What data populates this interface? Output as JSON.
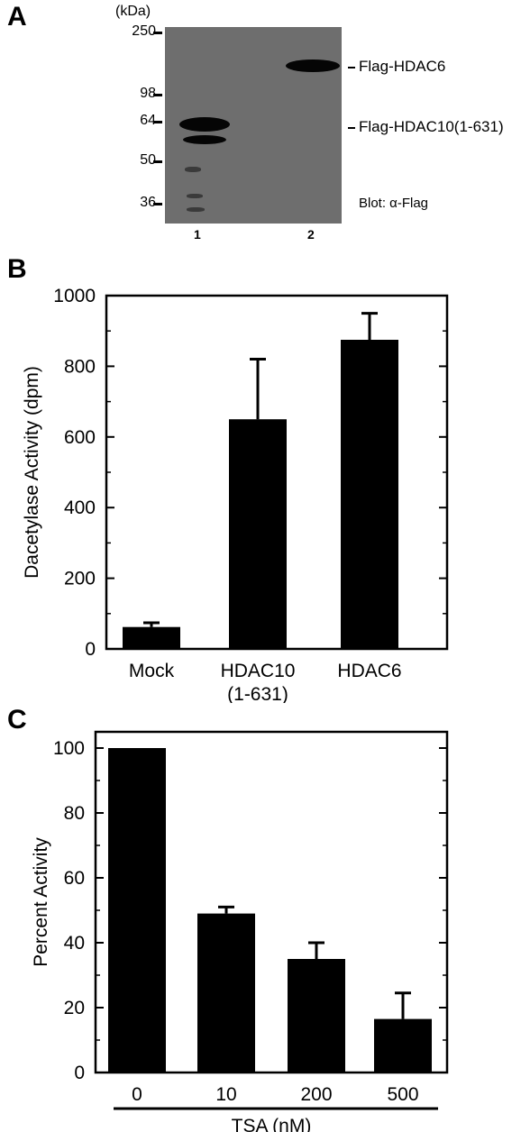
{
  "panels": {
    "a": {
      "letter": "A",
      "unit_label": "(kDa)",
      "markers": [
        "250",
        "98",
        "64",
        "50",
        "36"
      ],
      "lanes": [
        "1",
        "2"
      ],
      "band_labels": [
        "Flag-HDAC6",
        "Flag-HDAC10(1-631)"
      ],
      "blot_label": "Blot: α-Flag"
    },
    "b": {
      "letter": "B"
    },
    "c": {
      "letter": "C"
    }
  },
  "chart_data": [
    {
      "type": "bar",
      "ylabel": "Dacetylase Activity (dpm)",
      "xlabel": "",
      "categories": [
        "Mock",
        "HDAC10\n(1-631)",
        "HDAC6"
      ],
      "values": [
        62,
        650,
        875
      ],
      "errors": [
        12,
        170,
        75
      ],
      "ylim": [
        0,
        1000
      ],
      "yticks": [
        0,
        200,
        400,
        600,
        800,
        1000
      ],
      "color": "#000000"
    },
    {
      "type": "bar",
      "ylabel": "Percent Activity",
      "xlabel": "TSA (nM)",
      "categories": [
        "0",
        "10",
        "200",
        "500"
      ],
      "values": [
        100,
        49,
        35,
        16.5
      ],
      "errors": [
        0,
        2,
        5,
        8
      ],
      "ylim": [
        0,
        105
      ],
      "yticks": [
        0,
        20,
        40,
        60,
        80,
        100
      ],
      "color": "#000000"
    }
  ]
}
